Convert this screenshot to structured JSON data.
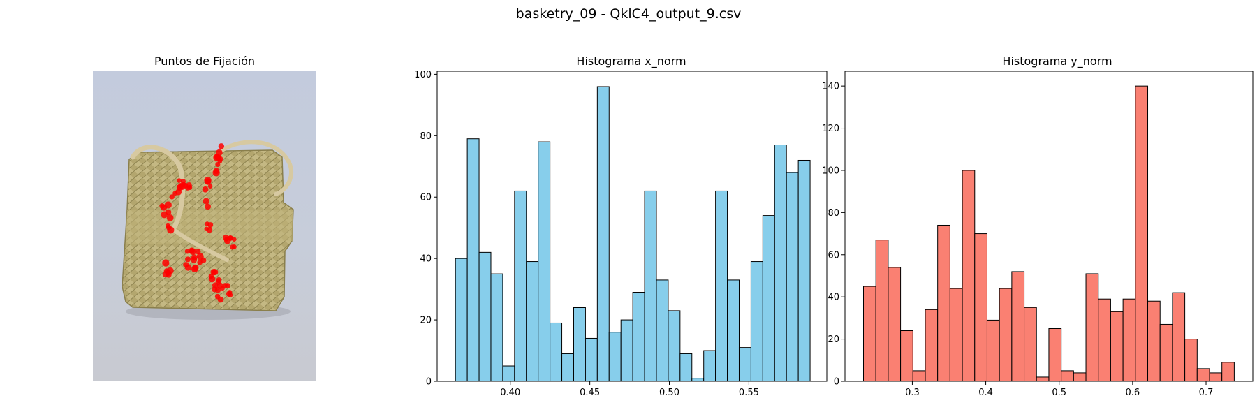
{
  "figure": {
    "suptitle": "basketry_09 - QklC4_output_9.csv"
  },
  "image_panel": {
    "title": "Puntos de Fijación",
    "icon": "basket-photo-with-red-fixation-points"
  },
  "colors": {
    "hist_x": "#87ceeb",
    "hist_y": "#fa8072",
    "edge": "#000000",
    "fixation": "#ff0000"
  },
  "chart_data": [
    {
      "type": "bar",
      "title": "Histograma x_norm",
      "xlabel": "",
      "ylabel": "",
      "grid": false,
      "bin_start": 0.3655,
      "bin_width": 0.007433,
      "values": [
        40,
        79,
        42,
        35,
        5,
        62,
        39,
        78,
        19,
        9,
        24,
        14,
        96,
        16,
        20,
        29,
        62,
        33,
        23,
        9,
        1,
        10,
        62,
        33,
        11,
        39,
        54,
        77,
        68,
        72
      ],
      "xlim": [
        0.354,
        0.599
      ],
      "ylim": [
        0,
        101
      ],
      "xticks": [
        0.4,
        0.45,
        0.5,
        0.55
      ],
      "xtick_labels": [
        "0.40",
        "0.45",
        "0.50",
        "0.55"
      ],
      "yticks": [
        0,
        20,
        40,
        60,
        80,
        100
      ],
      "ytick_labels": [
        "0",
        "20",
        "40",
        "60",
        "80",
        "100"
      ]
    },
    {
      "type": "bar",
      "title": "Histograma y_norm",
      "xlabel": "",
      "ylabel": "",
      "grid": false,
      "bin_start": 0.2335,
      "bin_width": 0.01683,
      "values": [
        45,
        67,
        54,
        24,
        5,
        34,
        74,
        44,
        100,
        70,
        29,
        44,
        52,
        35,
        2,
        25,
        5,
        4,
        51,
        39,
        33,
        39,
        140,
        38,
        27,
        42,
        20,
        6,
        4,
        9
      ],
      "xlim": [
        0.2083,
        0.7637
      ],
      "ylim": [
        0,
        147
      ],
      "xticks": [
        0.3,
        0.4,
        0.5,
        0.6,
        0.7
      ],
      "xtick_labels": [
        "0.3",
        "0.4",
        "0.5",
        "0.6",
        "0.7"
      ],
      "yticks": [
        0,
        20,
        40,
        60,
        80,
        100,
        120,
        140
      ],
      "ytick_labels": [
        "0",
        "20",
        "40",
        "60",
        "80",
        "100",
        "120",
        "140"
      ]
    }
  ]
}
